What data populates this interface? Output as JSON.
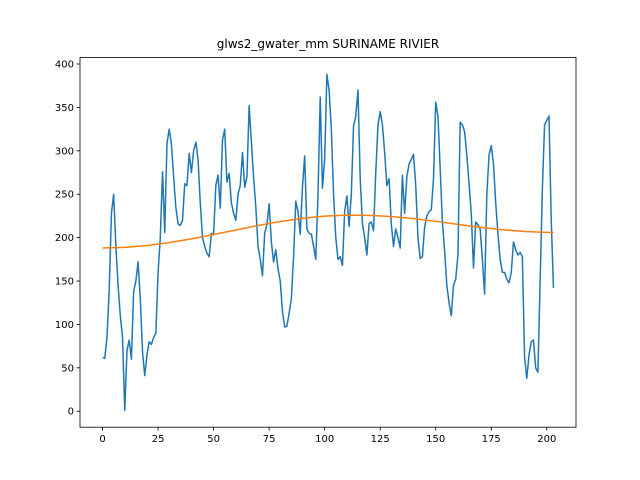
{
  "chart_data": {
    "type": "line",
    "title": "glws2_gwater_mm SURINAME RIVIER",
    "x": [
      0,
      1,
      2,
      3,
      4,
      5,
      6,
      7,
      8,
      9,
      10,
      11,
      12,
      13,
      14,
      15,
      16,
      17,
      18,
      19,
      20,
      21,
      22,
      23,
      24,
      25,
      26,
      27,
      28,
      29,
      30,
      31,
      32,
      33,
      34,
      35,
      36,
      37,
      38,
      39,
      40,
      41,
      42,
      43,
      44,
      45,
      46,
      47,
      48,
      49,
      50,
      51,
      52,
      53,
      54,
      55,
      56,
      57,
      58,
      59,
      60,
      61,
      62,
      63,
      64,
      65,
      66,
      67,
      68,
      69,
      70,
      71,
      72,
      73,
      74,
      75,
      76,
      77,
      78,
      79,
      80,
      81,
      82,
      83,
      84,
      85,
      86,
      87,
      88,
      89,
      90,
      91,
      92,
      93,
      94,
      95,
      96,
      97,
      98,
      99,
      100,
      101,
      102,
      103,
      104,
      105,
      106,
      107,
      108,
      109,
      110,
      111,
      112,
      113,
      114,
      115,
      116,
      117,
      118,
      119,
      120,
      121,
      122,
      123,
      124,
      125,
      126,
      127,
      128,
      129,
      130,
      131,
      132,
      133,
      134,
      135,
      136,
      137,
      138,
      139,
      140,
      141,
      142,
      143,
      144,
      145,
      146,
      147,
      148,
      149,
      150,
      151,
      152,
      153,
      154,
      155,
      156,
      157,
      158,
      159,
      160,
      161,
      162,
      163,
      164,
      165,
      166,
      167,
      168,
      169,
      170,
      171,
      172,
      173,
      174,
      175,
      176,
      177,
      178,
      179,
      180,
      181,
      182,
      183,
      184,
      185,
      186,
      187,
      188,
      189,
      190,
      191,
      192,
      193,
      194,
      195,
      196,
      197,
      198,
      199,
      200,
      201,
      202,
      203
    ],
    "series": [
      {
        "color": "#1f77b4",
        "values": [
          62,
          61,
          85,
          140,
          228,
          250,
          190,
          145,
          110,
          85,
          1,
          70,
          82,
          60,
          138,
          150,
          172,
          130,
          68,
          41,
          65,
          80,
          77,
          85,
          90,
          160,
          200,
          276,
          206,
          308,
          325,
          308,
          270,
          235,
          216,
          214,
          220,
          262,
          260,
          297,
          275,
          300,
          310,
          290,
          240,
          200,
          190,
          182,
          178,
          205,
          203,
          260,
          272,
          234,
          312,
          325,
          264,
          274,
          240,
          228,
          220,
          250,
          260,
          298,
          258,
          270,
          352,
          310,
          270,
          235,
          190,
          175,
          156,
          205,
          215,
          239,
          195,
          172,
          186,
          164,
          150,
          115,
          97,
          98,
          113,
          130,
          178,
          242,
          230,
          204,
          258,
          294,
          210,
          205,
          204,
          190,
          175,
          250,
          362,
          257,
          290,
          388,
          370,
          325,
          250,
          200,
          175,
          178,
          168,
          230,
          248,
          213,
          250,
          328,
          340,
          370,
          268,
          216,
          200,
          180,
          216,
          218,
          208,
          275,
          330,
          345,
          330,
          298,
          260,
          268,
          215,
          190,
          210,
          200,
          188,
          272,
          228,
          270,
          285,
          290,
          296,
          260,
          200,
          176,
          178,
          212,
          225,
          230,
          232,
          268,
          356,
          340,
          280,
          218,
          185,
          145,
          125,
          110,
          145,
          152,
          180,
          333,
          330,
          322,
          295,
          262,
          228,
          165,
          218,
          215,
          210,
          175,
          135,
          250,
          295,
          306,
          285,
          240,
          205,
          175,
          160,
          160,
          152,
          148,
          160,
          195,
          186,
          180,
          183,
          178,
          62,
          38,
          65,
          80,
          82,
          50,
          45,
          150,
          255,
          330,
          335,
          340,
          220,
          142
        ]
      },
      {
        "color": "#ff7f0e",
        "x": [
          0,
          10,
          20,
          30,
          40,
          50,
          60,
          70,
          80,
          90,
          100,
          110,
          120,
          130,
          140,
          150,
          160,
          170,
          180,
          190,
          200,
          203
        ],
        "values": [
          188,
          188.7,
          190.9,
          194.2,
          198.6,
          203.6,
          208.8,
          214.0,
          218.6,
          222.2,
          224.8,
          225.9,
          225.7,
          224.3,
          221.9,
          218.8,
          215.3,
          211.9,
          209.1,
          207.0,
          206.1,
          206
        ]
      }
    ],
    "xlim": [
      -10.15,
      213.15
    ],
    "ylim": [
      -18.4,
      407.4
    ],
    "xticks": [
      0,
      25,
      50,
      75,
      100,
      125,
      150,
      175,
      200
    ],
    "yticks": [
      0,
      50,
      100,
      150,
      200,
      250,
      300,
      350,
      400
    ]
  }
}
